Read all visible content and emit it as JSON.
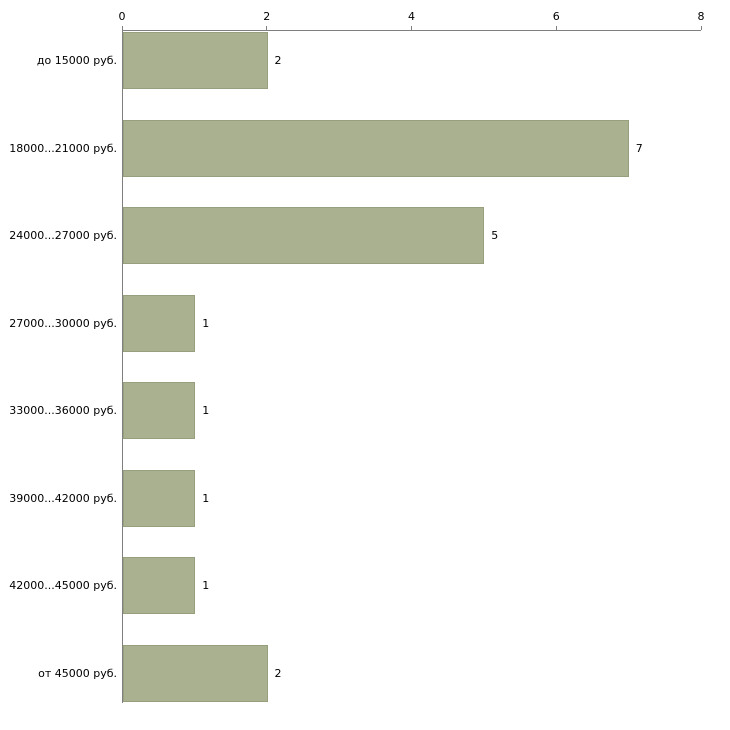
{
  "chart_data": {
    "type": "bar",
    "orientation": "horizontal",
    "title": "",
    "xlabel": "",
    "ylabel": "",
    "categories": [
      "до 15000 руб.",
      "18000...21000 руб.",
      "24000...27000 руб.",
      "27000...30000 руб.",
      "33000...36000 руб.",
      "39000...42000 руб.",
      "42000...45000 руб.",
      "от 45000 руб."
    ],
    "values": [
      2,
      7,
      5,
      1,
      1,
      1,
      1,
      2
    ],
    "xlim": [
      0,
      8
    ],
    "x_ticks": [
      0,
      2,
      4,
      6,
      8
    ],
    "grid": false,
    "legend": false,
    "value_labels": true,
    "colors": {
      "bar_fill": "#a9b191",
      "bar_border": "#97a07d",
      "axis": "#7f7f7f",
      "text": "#000000",
      "background": "#ffffff"
    }
  }
}
